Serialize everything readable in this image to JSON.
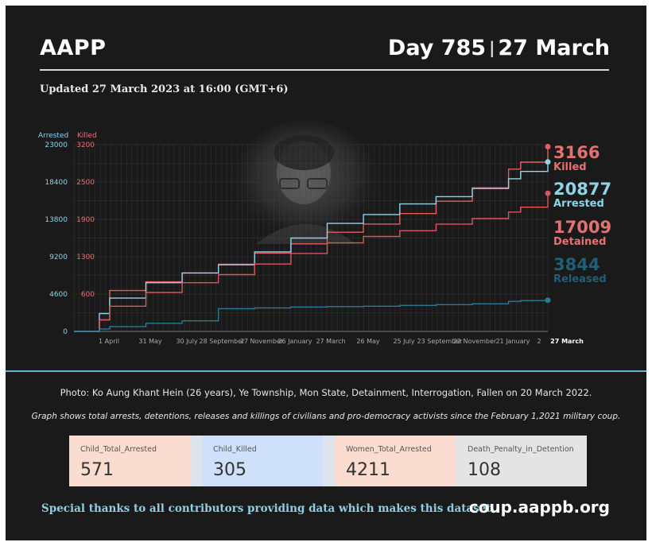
{
  "header": {
    "brand": "AAPP",
    "day": "Day 785",
    "date": "27 March",
    "updated": "Updated 27 March 2023 at 16:00 (GMT+6)"
  },
  "colors": {
    "arrested": "#8ed3e6",
    "killed": "#e25c5c",
    "detained": "#d8575a",
    "released": "#2a7a93",
    "killed_label": "#e27272",
    "arrested_label": "#8ed3e6",
    "released_label": "#1f5f77"
  },
  "chart_data": {
    "type": "line",
    "y_left_label": "Arrested",
    "y_right_label": "Killed",
    "y_left_ticks": [
      "23000",
      "18400",
      "13800",
      "9200",
      "4600",
      "0"
    ],
    "y_right_ticks": [
      "3200",
      "2500",
      "1900",
      "1300",
      "600"
    ],
    "y_left_range": [
      0,
      23000
    ],
    "y_right_range": [
      0,
      3200
    ],
    "x_ticks": [
      "1 April",
      "31 May",
      "30 July",
      "28 September",
      "27 November",
      "26 January",
      "27 March",
      "26 May",
      "25 July",
      "23 September",
      "22 November",
      "21 January",
      "2",
      "27 March"
    ],
    "x": [
      "2021-02-01",
      "2021-03-15",
      "2021-04-01",
      "2021-05-31",
      "2021-07-30",
      "2021-09-28",
      "2021-11-27",
      "2022-01-26",
      "2022-03-27",
      "2022-05-26",
      "2022-07-25",
      "2022-09-23",
      "2022-11-22",
      "2023-01-21",
      "2023-02-10",
      "2023-03-27"
    ],
    "series": [
      {
        "name": "Killed",
        "axis": "right",
        "values": [
          0,
          200,
          700,
          850,
          1000,
          1150,
          1340,
          1500,
          1700,
          1840,
          2020,
          2230,
          2460,
          2780,
          2900,
          3166
        ]
      },
      {
        "name": "Arrested",
        "axis": "left",
        "values": [
          0,
          2200,
          4100,
          6000,
          7200,
          8200,
          9800,
          11500,
          13300,
          14400,
          15700,
          16600,
          17600,
          18800,
          19700,
          20877
        ]
      },
      {
        "name": "Detained",
        "axis": "left",
        "values": [
          0,
          1400,
          3100,
          4800,
          6000,
          7000,
          8300,
          9600,
          10900,
          11700,
          12400,
          13200,
          13900,
          14700,
          15300,
          17009
        ]
      },
      {
        "name": "Released",
        "axis": "left",
        "values": [
          0,
          300,
          600,
          1000,
          1300,
          2800,
          2900,
          3000,
          3050,
          3100,
          3200,
          3300,
          3400,
          3700,
          3800,
          3844
        ]
      }
    ],
    "legend": [
      {
        "value": "3166",
        "label": "Killed"
      },
      {
        "value": "20877",
        "label": "Arrested"
      },
      {
        "value": "17009",
        "label": "Detained"
      },
      {
        "value": "3844",
        "label": "Released"
      }
    ],
    "grid": true
  },
  "photo_caption": "Photo: Ko Aung Khant Hein (26 years), Ye Township, Mon State,  Detainment, Interrogation, Fallen on 20 March 2022.",
  "graph_note": "Graph shows total arrests, detentions, releases and killings of civilians and pro-democracy activists since the February 1,2021 military coup.",
  "stats": [
    {
      "label": "Child_Total_Arrested",
      "value": "571"
    },
    {
      "label": "Child_Killed",
      "value": "305"
    },
    {
      "label": "Women_Total_Arrested",
      "value": "4211"
    },
    {
      "label": "Death_Penalty_in_Detention",
      "value": "108"
    }
  ],
  "footer": {
    "thanks": "Special thanks to all contributors providing data which makes this dataset.",
    "site": "coup.aappb.org"
  }
}
